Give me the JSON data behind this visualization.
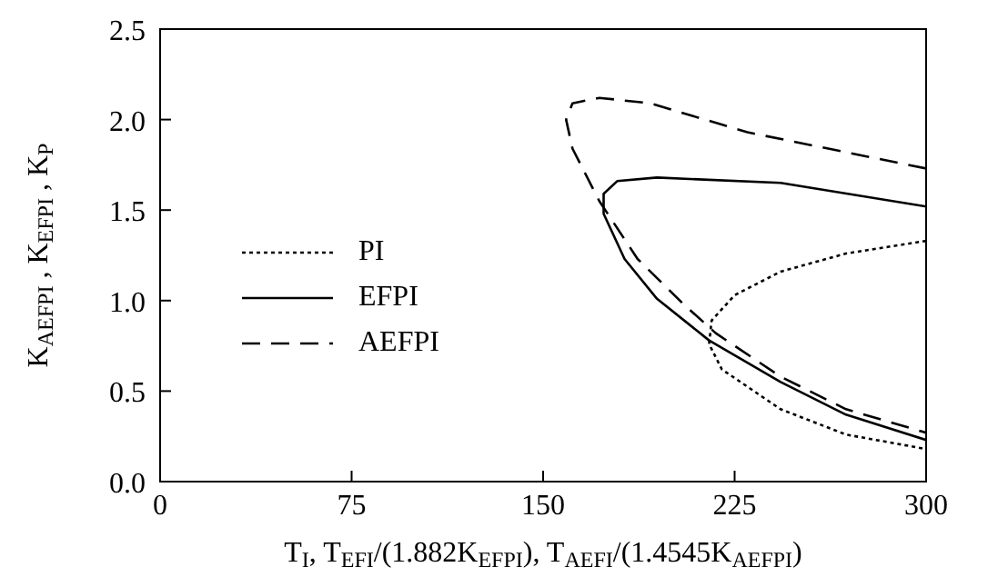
{
  "chart_data": {
    "type": "line",
    "xlabel": "T$_{I}$,  T$_{EFI}$/(1.882K$_{EFPI}$),  T$_{AEFI}$/(1.4545K$_{AEFPI}$)",
    "ylabel": "K$_{AEFPI}$ ,  K$_{EFPI}$ ,  K$_{P}$",
    "xlim": [
      0,
      300
    ],
    "xticks": [
      0,
      75,
      150,
      225,
      300
    ],
    "ylim": [
      0,
      2.5
    ],
    "yticks": [
      {
        "value": 0,
        "label": "0.0"
      },
      0.5,
      {
        "value": 1,
        "label": "1.0"
      },
      1.5,
      {
        "value": 2,
        "label": "2.0"
      },
      2.5
    ],
    "grid": false,
    "legend": "left",
    "marker": "none",
    "series": [
      {
        "name": "PI",
        "color": "#000000",
        "line_style": "dotted",
        "x": [
          300,
          268.6,
          243,
          225,
          216,
          215,
          220,
          243,
          268.6,
          300
        ],
        "values": [
          1.33,
          1.26,
          1.16,
          1.03,
          0.89,
          0.76,
          0.62,
          0.4,
          0.26,
          0.18
        ]
      },
      {
        "name": "EFPI",
        "color": "#000000",
        "line_style": "solid",
        "x": [
          300,
          243,
          194.6,
          179,
          173.7,
          173.7,
          181.9,
          194.6,
          215,
          243,
          268.6,
          300
        ],
        "values": [
          1.52,
          1.65,
          1.68,
          1.66,
          1.59,
          1.48,
          1.23,
          1.01,
          0.78,
          0.55,
          0.37,
          0.23
        ]
      },
      {
        "name": "AEFPI",
        "color": "#000000",
        "line_style": "dashed",
        "x": [
          300,
          230,
          192,
          172,
          161.5,
          159,
          161.5,
          172,
          187,
          205,
          217.6,
          243,
          268.6,
          300
        ],
        "values": [
          1.73,
          1.93,
          2.09,
          2.12,
          2.09,
          2.0,
          1.84,
          1.55,
          1.23,
          0.98,
          0.82,
          0.58,
          0.4,
          0.27
        ]
      }
    ]
  }
}
